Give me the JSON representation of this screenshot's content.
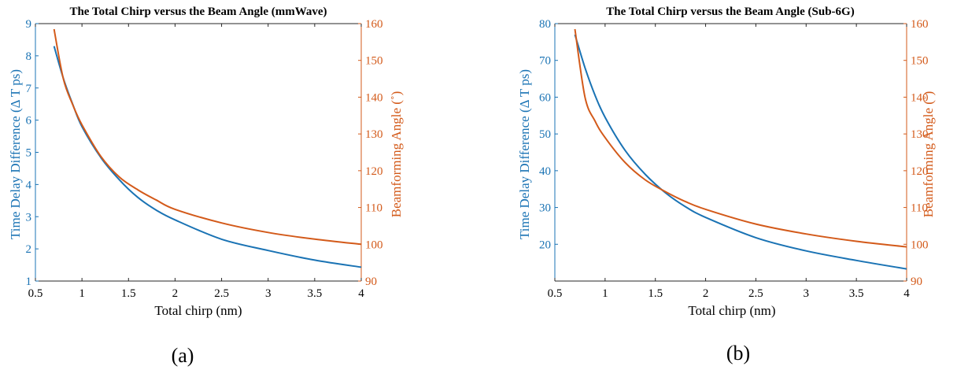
{
  "colors": {
    "left_axis": "#1a73b4",
    "right_axis": "#d35a1a",
    "axis": "#262626"
  },
  "chart_data": [
    {
      "type": "line",
      "title": "The Total Chirp versus the Beam Angle (mmWave)",
      "xlabel": "Total chirp (nm)",
      "ylabel_left": "Time Delay Difference (Δ T ps)",
      "ylabel_right": "Beamforming Angle (˚)",
      "xlim": [
        0.5,
        4
      ],
      "ylim_left": [
        1,
        9
      ],
      "ylim_right": [
        90,
        160
      ],
      "xticks": [
        0.5,
        1,
        1.5,
        2,
        2.5,
        3,
        3.5,
        4
      ],
      "yticks_left": [
        1,
        2,
        3,
        4,
        5,
        6,
        7,
        8,
        9
      ],
      "yticks_right": [
        90,
        100,
        110,
        120,
        130,
        140,
        150,
        160
      ],
      "grid": false,
      "panel_label": "(a)",
      "series": [
        {
          "axis": "left",
          "color": "#1a73b4",
          "x": [
            0.7,
            0.8,
            0.9,
            1.0,
            1.2,
            1.4,
            1.6,
            1.8,
            2.0,
            2.5,
            3.0,
            3.5,
            4.0
          ],
          "y": [
            8.3,
            7.3,
            6.5,
            5.8,
            4.85,
            4.15,
            3.6,
            3.2,
            2.9,
            2.3,
            1.95,
            1.65,
            1.43
          ]
        },
        {
          "axis": "right",
          "color": "#d35a1a",
          "x": [
            0.7,
            0.8,
            0.9,
            1.0,
            1.2,
            1.4,
            1.6,
            1.8,
            2.0,
            2.5,
            3.0,
            3.5,
            4.0
          ],
          "y": [
            158.5,
            145,
            138,
            132.5,
            124,
            118.3,
            114.8,
            112,
            109.5,
            105.8,
            103.2,
            101.4,
            100
          ]
        }
      ]
    },
    {
      "type": "line",
      "title": "The Total Chirp versus the Beam Angle (Sub-6G)",
      "xlabel": "Total chirp (nm)",
      "ylabel_left": "Time Delay Difference (Δ T ps)",
      "ylabel_right": "Beamforming Angle (˚)",
      "xlim": [
        0.5,
        4
      ],
      "ylim_left": [
        10,
        80
      ],
      "ylim_right": [
        90,
        160
      ],
      "xticks": [
        0.5,
        1,
        1.5,
        2,
        2.5,
        3,
        3.5,
        4
      ],
      "yticks_left": [
        20,
        30,
        40,
        50,
        60,
        70,
        80
      ],
      "yticks_right": [
        90,
        100,
        110,
        120,
        130,
        140,
        150,
        160
      ],
      "grid": false,
      "panel_label": "(b)",
      "series": [
        {
          "axis": "left",
          "color": "#1a73b4",
          "x": [
            0.7,
            0.8,
            0.9,
            1.0,
            1.2,
            1.4,
            1.6,
            1.8,
            2.0,
            2.5,
            3.0,
            3.5,
            4.0
          ],
          "y": [
            77,
            68,
            60.5,
            54.5,
            45.5,
            39,
            34,
            30.2,
            27.3,
            21.8,
            18.2,
            15.6,
            13.3
          ]
        },
        {
          "axis": "right",
          "color": "#d35a1a",
          "x": [
            0.7,
            0.8,
            0.9,
            1.0,
            1.2,
            1.4,
            1.6,
            1.8,
            2.0,
            2.5,
            3.0,
            3.5,
            4.0
          ],
          "y": [
            158.5,
            140,
            133.5,
            129,
            122.2,
            117.5,
            114.3,
            111.6,
            109.5,
            105.5,
            102.8,
            100.8,
            99.3
          ]
        }
      ]
    }
  ]
}
